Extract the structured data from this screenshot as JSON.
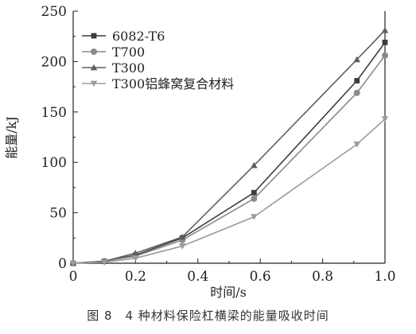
{
  "caption": "图 8　4 种材料保险杠横梁的能量吸收时间",
  "chart_data": {
    "type": "line",
    "xlabel": "时间/s",
    "ylabel": "能量/kJ",
    "xlim": [
      0,
      1.0
    ],
    "ylim": [
      0,
      250
    ],
    "xticks": [
      0,
      0.2,
      0.4,
      0.6,
      0.8,
      1.0
    ],
    "xtick_labels": [
      "0",
      "0.2",
      "0.4",
      "0.6",
      "0.8",
      "1.0"
    ],
    "yticks": [
      0,
      50,
      100,
      150,
      200,
      250
    ],
    "ytick_labels": [
      "0",
      "50",
      "100",
      "150",
      "200",
      "250"
    ],
    "grid": false,
    "legend_position": "top-left",
    "series": [
      {
        "name": "6082-T6",
        "marker": "square",
        "color": "#3d3d3d",
        "x": [
          0,
          0.1,
          0.2,
          0.35,
          0.58,
          0.91,
          1.0
        ],
        "y": [
          0,
          2,
          8,
          25,
          70,
          181,
          219
        ]
      },
      {
        "name": "T700",
        "marker": "circle",
        "color": "#8a8a8a",
        "x": [
          0,
          0.1,
          0.2,
          0.35,
          0.58,
          0.91,
          1.0
        ],
        "y": [
          0,
          2,
          7,
          23,
          64,
          169,
          206
        ]
      },
      {
        "name": "T300",
        "marker": "triangle-up",
        "color": "#5e5e5e",
        "x": [
          0,
          0.1,
          0.2,
          0.35,
          0.58,
          0.91,
          1.0
        ],
        "y": [
          0,
          2,
          10,
          26,
          97,
          202,
          231
        ]
      },
      {
        "name": "T300铝蜂窝复合材料",
        "marker": "triangle-down",
        "color": "#9b9b9b",
        "x": [
          0,
          0.1,
          0.2,
          0.35,
          0.58,
          0.91,
          1.0
        ],
        "y": [
          0,
          1,
          5,
          17,
          46,
          118,
          143
        ]
      }
    ]
  }
}
